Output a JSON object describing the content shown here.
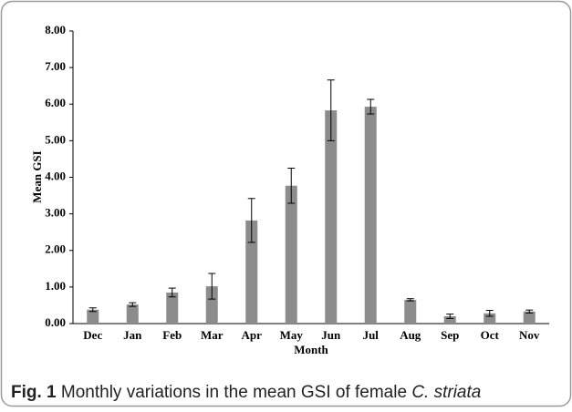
{
  "chart_data": {
    "type": "bar",
    "xlabel": "Month",
    "ylabel": "Mean GSI",
    "categories": [
      "Dec",
      "Jan",
      "Feb",
      "Mar",
      "Apr",
      "May",
      "Jun",
      "Jul",
      "Aug",
      "Sep",
      "Oct",
      "Nov"
    ],
    "values": [
      0.38,
      0.52,
      0.85,
      1.02,
      2.82,
      3.77,
      5.83,
      5.93,
      0.65,
      0.2,
      0.28,
      0.33
    ],
    "errors": [
      0.05,
      0.05,
      0.12,
      0.35,
      0.6,
      0.48,
      0.83,
      0.2,
      0.03,
      0.06,
      0.08,
      0.04
    ],
    "color": "#8c8c8c",
    "ylim": [
      0,
      8
    ],
    "yticks": [
      {
        "value": 0,
        "label": "0.00"
      },
      {
        "value": 1,
        "label": "1.00"
      },
      {
        "value": 2,
        "label": "2.00"
      },
      {
        "value": 3,
        "label": "3.00"
      },
      {
        "value": 4,
        "label": "4.00"
      },
      {
        "value": 5,
        "label": "5.00"
      },
      {
        "value": 6,
        "label": "6.00"
      },
      {
        "value": 7,
        "label": "7.00"
      },
      {
        "value": 8,
        "label": "8.00"
      }
    ],
    "grid": false
  },
  "caption": {
    "label": "Fig. 1",
    "text": "Monthly variations in the mean GSI of female",
    "species": "C. striata"
  }
}
